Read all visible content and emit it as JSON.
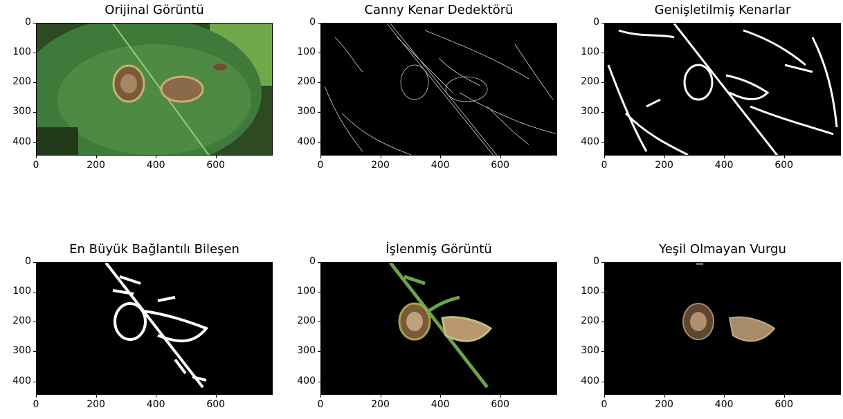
{
  "panels": [
    {
      "title": "Orijinal Görüntü"
    },
    {
      "title": "Canny Kenar Dedektörü"
    },
    {
      "title": "Genişletilmiş Kenarlar"
    },
    {
      "title": "En Büyük Bağlantılı Bileşen"
    },
    {
      "title": "İşlenmiş Görüntü"
    },
    {
      "title": "Yeşil Olmayan Vurgu"
    }
  ],
  "axes": {
    "y_ticks": [
      "0",
      "100",
      "200",
      "300",
      "400"
    ],
    "x_ticks": [
      "0",
      "200",
      "400",
      "600"
    ]
  }
}
